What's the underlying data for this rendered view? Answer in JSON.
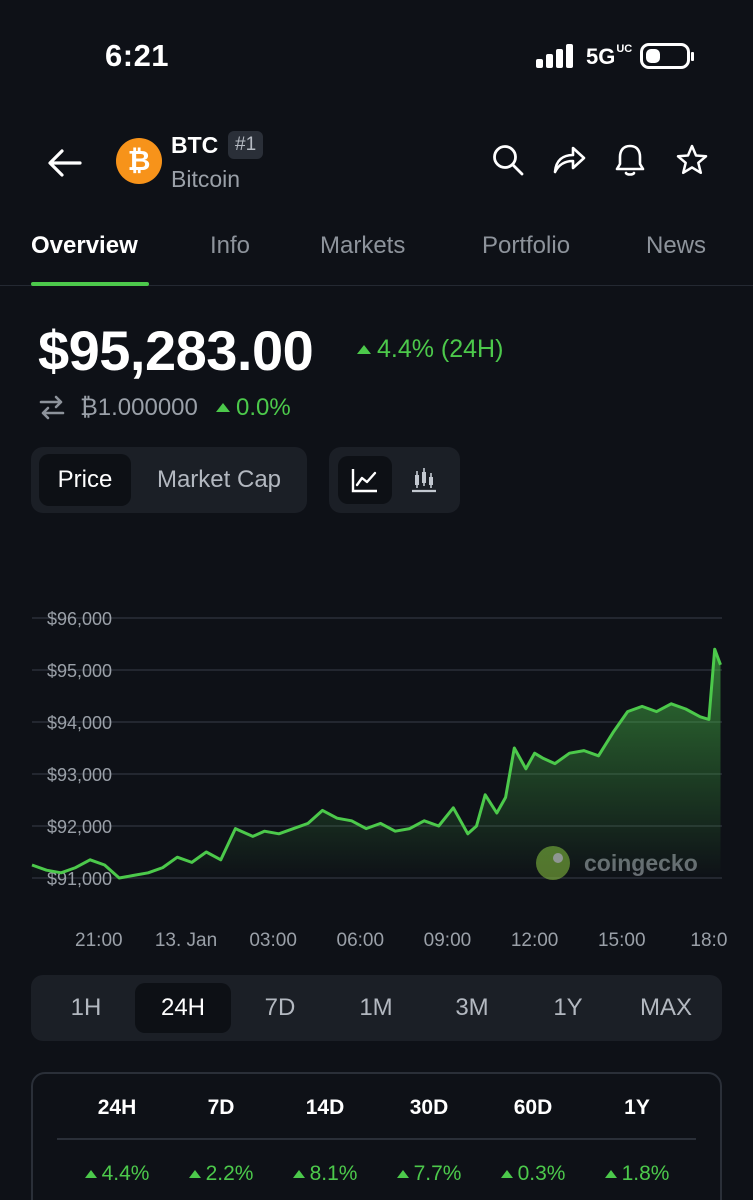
{
  "status_bar": {
    "time": "6:21",
    "network": "5G",
    "network_sup": "UC"
  },
  "header": {
    "symbol": "BTC",
    "rank": "#1",
    "name": "Bitcoin"
  },
  "tabs": [
    "Overview",
    "Info",
    "Markets",
    "Portfolio",
    "News"
  ],
  "price": {
    "value": "$95,283.00",
    "change": "4.4% (24H)",
    "btc_value": "₿1.000000",
    "btc_change": "0.0%"
  },
  "chart_toggle": {
    "price": "Price",
    "market_cap": "Market Cap"
  },
  "colors": {
    "accent": "#4cc94b",
    "background": "#0e1117",
    "coin": "#f7931a"
  },
  "chart_data": {
    "type": "area",
    "y_tick_labels": [
      "$96,000",
      "$95,000",
      "$94,000",
      "$93,000",
      "$92,000",
      "$91,000"
    ],
    "y_ticks": [
      96000,
      95000,
      94000,
      93000,
      92000,
      91000
    ],
    "ylim": [
      91000,
      96000
    ],
    "x_tick_labels": [
      "21:00",
      "13. Jan",
      "03:00",
      "06:00",
      "09:00",
      "12:00",
      "15:00",
      "18:0"
    ],
    "x_ticks_hours": [
      2.3,
      5.3,
      8.3,
      11.3,
      14.3,
      17.3,
      20.3,
      23.3
    ],
    "grid": true,
    "watermark": "coingecko",
    "series": [
      {
        "x": [
          0,
          0.5,
          1,
          1.5,
          2,
          2.5,
          3,
          3.5,
          4,
          4.5,
          5,
          5.5,
          6,
          6.5,
          7,
          7.2,
          7.6,
          8,
          8.5,
          9,
          9.5,
          10,
          10.5,
          11,
          11.5,
          12,
          12.5,
          13,
          13.5,
          14,
          14.5,
          15,
          15.3,
          15.6,
          16,
          16.3,
          16.6,
          17,
          17.3,
          17.6,
          18,
          18.5,
          19,
          19.5,
          20,
          20.5,
          21,
          21.5,
          22,
          22.5,
          23,
          23.3,
          23.5,
          23.7
        ],
        "y": [
          91250,
          91150,
          91100,
          91200,
          91350,
          91250,
          91000,
          91050,
          91100,
          91200,
          91400,
          91300,
          91500,
          91350,
          91950,
          91900,
          91800,
          91900,
          91850,
          91950,
          92050,
          92300,
          92150,
          92100,
          91950,
          92050,
          91900,
          91950,
          92100,
          92000,
          92350,
          91850,
          92000,
          92600,
          92250,
          92550,
          93500,
          93100,
          93400,
          93300,
          93200,
          93400,
          93450,
          93350,
          93800,
          94200,
          94300,
          94200,
          94350,
          94250,
          94100,
          94050,
          95400,
          95100
        ]
      }
    ]
  },
  "ranges": [
    "1H",
    "24H",
    "7D",
    "1M",
    "3M",
    "1Y",
    "MAX"
  ],
  "performance": {
    "headers": [
      "24H",
      "7D",
      "14D",
      "30D",
      "60D",
      "1Y"
    ],
    "values": [
      "4.4%",
      "2.2%",
      "8.1%",
      "7.7%",
      "0.3%",
      "1.8%"
    ]
  }
}
